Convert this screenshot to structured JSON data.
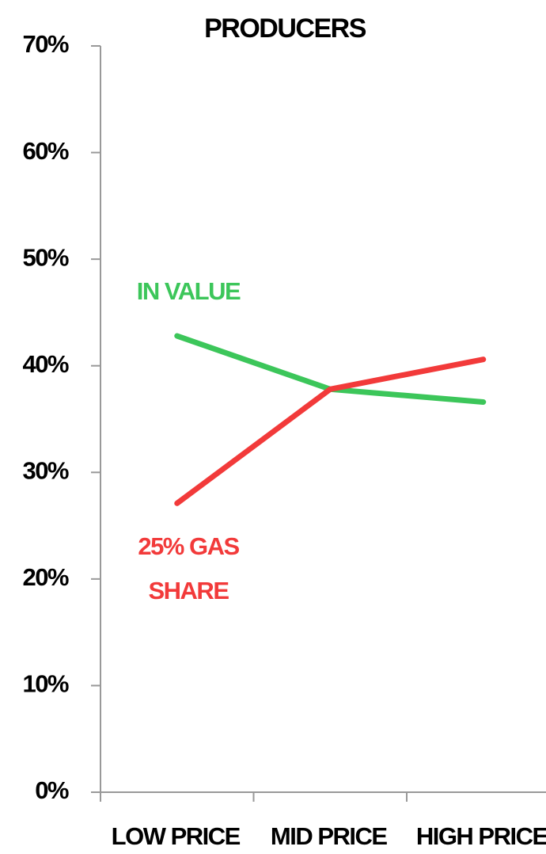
{
  "chart_data": {
    "type": "line",
    "title": "PRODUCERS",
    "categories": [
      "LOW PRICE",
      "MID PRICE",
      "HIGH PRICE"
    ],
    "series": [
      {
        "name": "IN VALUE",
        "color": "#3cc65a",
        "values": [
          42.8,
          37.8,
          36.6
        ]
      },
      {
        "name": "25% GAS SHARE",
        "color": "#f23a3a",
        "values": [
          27.1,
          37.8,
          40.6
        ]
      }
    ],
    "ylim": [
      0,
      70
    ],
    "yticks": [
      {
        "value": 0,
        "label": "0%"
      },
      {
        "value": 10,
        "label": "10%"
      },
      {
        "value": 20,
        "label": "20%"
      },
      {
        "value": 30,
        "label": "30%"
      },
      {
        "value": 40,
        "label": "40%"
      },
      {
        "value": 50,
        "label": "50%"
      },
      {
        "value": 60,
        "label": "60%"
      },
      {
        "value": 70,
        "label": "70%"
      }
    ],
    "grid": false
  }
}
